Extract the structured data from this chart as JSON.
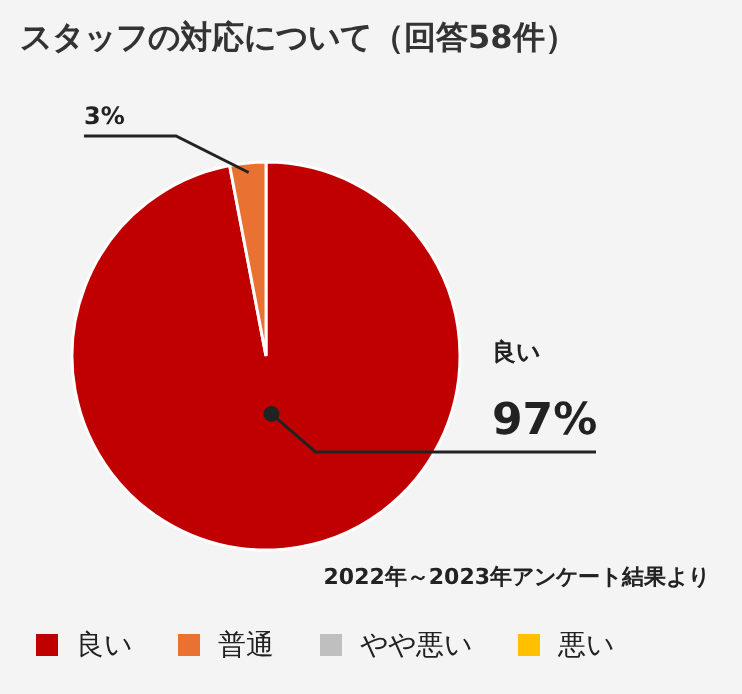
{
  "chart_data": {
    "type": "pie",
    "title": "スタッフの対応について（回答58件）",
    "categories": [
      "良い",
      "普通",
      "やや悪い",
      "悪い"
    ],
    "values": [
      97,
      3,
      0,
      0
    ],
    "colors": [
      "#c00000",
      "#e97132",
      "#bfbfbf",
      "#ffc000"
    ],
    "value_labels": [
      "97%",
      "3%",
      null,
      null
    ],
    "annotations": [
      "2022年～2023年アンケート結果より"
    ],
    "legend": "bottom"
  }
}
